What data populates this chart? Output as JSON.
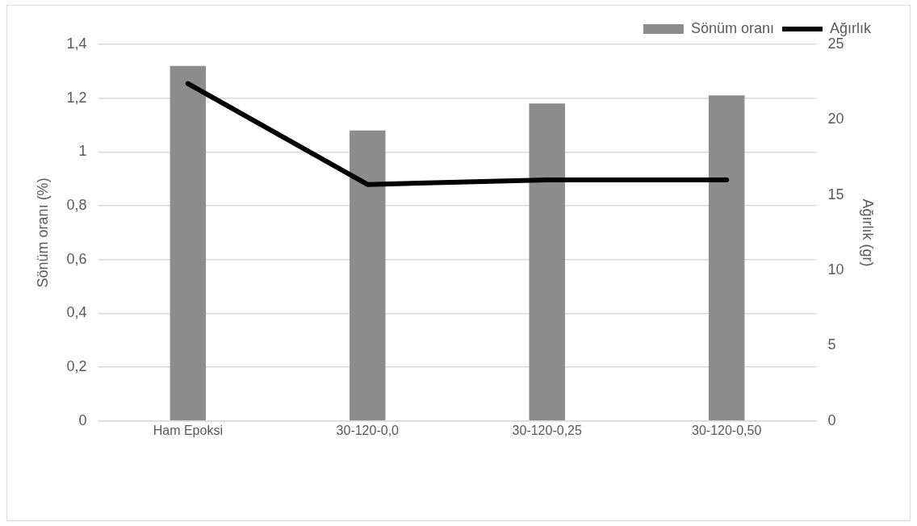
{
  "chart_data": {
    "type": "bar",
    "categories": [
      "Ham Epoksi",
      "30-120-0,0",
      "30-120-0,25",
      "30-120-0,50"
    ],
    "series": [
      {
        "name": "Sönüm oranı",
        "color": "#8c8c8c",
        "values": [
          1.32,
          1.08,
          1.18,
          1.21
        ]
      },
      {
        "name": "Ağırlık",
        "type": "line",
        "axis": "y2",
        "color": "#000000",
        "values": [
          22.4,
          15.7,
          16.0,
          16.0
        ]
      }
    ],
    "ylabel": "Sönüm oranı (%)",
    "y2label": "Ağırlık (gr)",
    "ylim": [
      0,
      1.4
    ],
    "yticks": [
      0,
      {
        "value": 0.2,
        "label": "0,2"
      },
      {
        "value": 0.4,
        "label": "0,4"
      },
      {
        "value": 0.6,
        "label": "0,6"
      },
      {
        "value": 0.8,
        "label": "0,8"
      },
      1,
      {
        "value": 1.2,
        "label": "1,2"
      },
      {
        "value": 1.4,
        "label": "1,4"
      }
    ],
    "y2lim": [
      0,
      25
    ],
    "y2ticks": [
      0,
      5,
      10,
      15,
      20,
      25
    ],
    "grid": "y",
    "legend": "top right",
    "marker": "none",
    "line_style": "solid"
  }
}
